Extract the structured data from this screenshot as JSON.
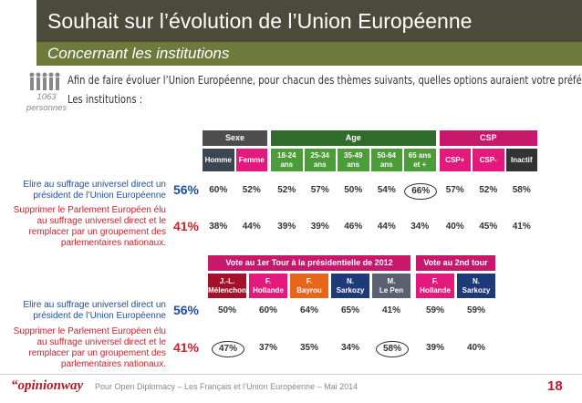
{
  "header": {
    "title": "Souhait sur l’évolution de l’Union Européenne",
    "subtitle": "Concernant les institutions"
  },
  "sample": {
    "count": "1063",
    "label": "personnes"
  },
  "question": {
    "text": "Afin de faire évoluer l’Union Européenne, pour chacun des thèmes suivants, quelles options auraient votre préférence ?",
    "topic": "Les institutions :"
  },
  "table1": {
    "groups": [
      {
        "label": "Sexe",
        "color": "#4d4d4d",
        "columns": [
          {
            "label": "Homme",
            "color": "#3c4650"
          },
          {
            "label": "Femme",
            "color": "#e3197b"
          }
        ]
      },
      {
        "label": "Age",
        "color": "#2f6b2a",
        "columns": [
          {
            "label": "18-24\nans",
            "color": "#4d9c3a"
          },
          {
            "label": "25-34\nans",
            "color": "#4d9c3a"
          },
          {
            "label": "35-49\nans",
            "color": "#4d9c3a"
          },
          {
            "label": "50-64\nans",
            "color": "#4d9c3a"
          },
          {
            "label": "65 ans\net +",
            "color": "#4d9c3a"
          }
        ]
      },
      {
        "label": "CSP",
        "color": "#c8186c",
        "columns": [
          {
            "label": "CSP+",
            "color": "#e3197b"
          },
          {
            "label": "CSP-",
            "color": "#e3197b"
          },
          {
            "label": "Inactif",
            "color": "#333333"
          }
        ]
      }
    ],
    "rows": [
      {
        "label": "Elire au suffrage universel direct un président de l’Union Européenne",
        "color": "#1f4e9a",
        "total": "56%",
        "values": [
          "60%",
          "52%",
          "52%",
          "57%",
          "50%",
          "54%",
          "66%",
          "57%",
          "52%",
          "58%"
        ],
        "circled": [
          6
        ]
      },
      {
        "label": "Supprimer le Parlement Européen élu au suffrage universel direct et le remplacer par un groupement des parlementaires nationaux.",
        "color": "#d0202a",
        "total": "41%",
        "values": [
          "38%",
          "44%",
          "39%",
          "39%",
          "46%",
          "44%",
          "34%",
          "40%",
          "45%",
          "41%"
        ],
        "circled": []
      }
    ]
  },
  "table2": {
    "groups": [
      {
        "label": "Vote au 1er Tour à la présidentielle de 2012",
        "color": "#c8186c",
        "columns": [
          {
            "label": "J.-L.\nMélenchon",
            "color": "#a3122a"
          },
          {
            "label": "F.\nHollande",
            "color": "#e3197b"
          },
          {
            "label": "F.\nBayrou",
            "color": "#e8661c"
          },
          {
            "label": "N.\nSarkozy",
            "color": "#1f3a78"
          },
          {
            "label": "M.\nLe Pen",
            "color": "#5a6070"
          }
        ]
      },
      {
        "label": "Vote au 2nd tour",
        "color": "#c8186c",
        "columns": [
          {
            "label": "F.\nHollande",
            "color": "#e3197b"
          },
          {
            "label": "N.\nSarkozy",
            "color": "#1f3a78"
          }
        ]
      }
    ],
    "rows": [
      {
        "label": "Elire au suffrage universel direct un président de l’Union Européenne",
        "color": "#1f4e9a",
        "total": "56%",
        "values": [
          "50%",
          "60%",
          "64%",
          "65%",
          "41%",
          "59%",
          "59%"
        ],
        "circled": []
      },
      {
        "label": "Supprimer le Parlement Européen élu au suffrage universel direct et le remplacer par un groupement des parlementaires nationaux.",
        "color": "#d0202a",
        "total": "41%",
        "values": [
          "47%",
          "37%",
          "35%",
          "34%",
          "58%",
          "39%",
          "40%"
        ],
        "circled": [
          0,
          4
        ]
      }
    ]
  },
  "footer": {
    "brand": "opinionway",
    "note": "Pour Open Diplomacy – Les Français et l’Union Européenne – Mai 2014",
    "page": "18"
  }
}
